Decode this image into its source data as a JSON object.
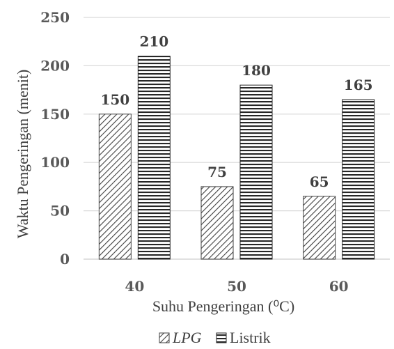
{
  "chart_data": {
    "type": "bar",
    "categories": [
      "40",
      "50",
      "60"
    ],
    "series": [
      {
        "name": "LPG",
        "values": [
          150,
          75,
          65
        ],
        "pattern": "diagonal",
        "color": "#404040"
      },
      {
        "name": "Listrik",
        "values": [
          210,
          180,
          165
        ],
        "pattern": "horizontal",
        "color": "#262626"
      }
    ],
    "xlabel": "Suhu Pengeringan (⁰C)",
    "ylabel": "Waktu Pengeringan (menit)",
    "ylim": [
      0,
      250
    ],
    "yticks": [
      "0",
      "50",
      "100",
      "150",
      "200",
      "250"
    ],
    "data_labels": [
      "150",
      "75",
      "65",
      "210",
      "180",
      "165"
    ],
    "grid": true,
    "legend_position": "bottom"
  }
}
